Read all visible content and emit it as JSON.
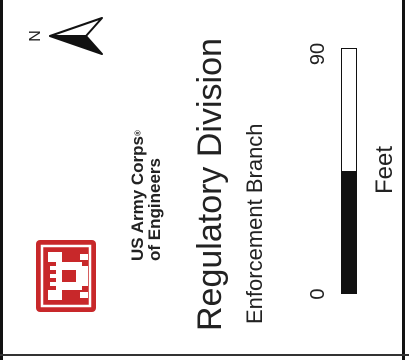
{
  "north_arrow": {
    "letter": "N",
    "icon": "north-arrow-icon"
  },
  "logo": {
    "icon": "usace-castle-logo-icon",
    "color": "#c8282a"
  },
  "agency": {
    "line1": "US Army Corps",
    "line2": "of Engineers",
    "mark": "®"
  },
  "division": {
    "title": "Regulatory Division",
    "subtitle": "Enforcement Branch"
  },
  "scale_bar": {
    "min_label": "0",
    "max_label": "90",
    "unit": "Feet",
    "filled_fraction": 0.5
  }
}
